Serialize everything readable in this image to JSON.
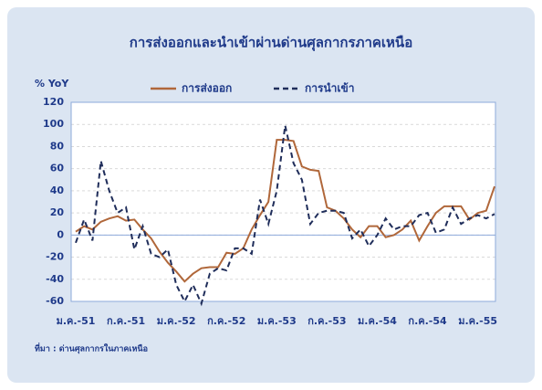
{
  "chart_data": {
    "type": "line",
    "title": "การส่งออกและนำเข้าผ่านด่านศุลกากรภาคเหนือ",
    "y_label": "% YoY",
    "source": "ที่มา : ด่านศุลกากรในภาคเหนือ",
    "categories": [
      "ม.ค.-51",
      null,
      null,
      null,
      null,
      null,
      "ก.ค.-51",
      null,
      null,
      null,
      null,
      null,
      "ม.ค.-52",
      null,
      null,
      null,
      null,
      null,
      "ก.ค.-52",
      null,
      null,
      null,
      null,
      null,
      "ม.ค.-53",
      null,
      null,
      null,
      null,
      null,
      "ก.ค.-53",
      null,
      null,
      null,
      null,
      null,
      "ม.ค.-54",
      null,
      null,
      null,
      null,
      null,
      "ก.ค.-54",
      null,
      null,
      null,
      null,
      null,
      "ม.ค.-55",
      null,
      null
    ],
    "series": [
      {
        "name": "การส่งออก",
        "color": "#b0673a",
        "dash": false,
        "values": [
          3,
          8,
          5,
          12,
          15,
          17,
          13,
          14,
          5,
          -3,
          -15,
          -25,
          -33,
          -42,
          -35,
          -30,
          -29,
          -29,
          -16,
          -17,
          -12,
          5,
          18,
          30,
          86,
          86,
          85,
          62,
          59,
          58,
          25,
          22,
          15,
          5,
          -2,
          8,
          8,
          -2,
          0,
          5,
          13,
          -5,
          8,
          20,
          26,
          26,
          26,
          14,
          20,
          22,
          44
        ]
      },
      {
        "name": "การนำเข้า",
        "color": "#1f2d5a",
        "dash": true,
        "values": [
          -7,
          14,
          -5,
          67,
          40,
          20,
          25,
          -13,
          8,
          -17,
          -20,
          -13,
          -45,
          -60,
          -45,
          -62,
          -35,
          -30,
          -32,
          -12,
          -12,
          -17,
          32,
          10,
          40,
          99,
          65,
          50,
          10,
          20,
          22,
          22,
          20,
          -3,
          5,
          -10,
          0,
          15,
          5,
          8,
          8,
          18,
          20,
          2,
          5,
          25,
          10,
          15,
          18,
          15,
          19
        ]
      }
    ],
    "ylim": [
      -60,
      120
    ],
    "yticks": [
      -60,
      -40,
      -20,
      0,
      20,
      40,
      60,
      80,
      100,
      120
    ],
    "grid": true
  }
}
